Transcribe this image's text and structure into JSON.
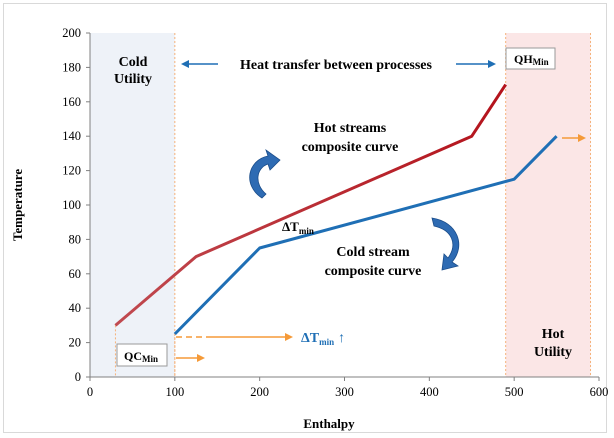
{
  "chart_data": {
    "type": "line",
    "xlabel": "Enthalpy",
    "ylabel": "Temperature",
    "xlim": [
      0,
      600
    ],
    "ylim": [
      0,
      200
    ],
    "xticks": [
      "0",
      "100",
      "200",
      "300",
      "400",
      "500",
      "600"
    ],
    "yticks": [
      "0",
      "20",
      "40",
      "60",
      "80",
      "100",
      "120",
      "140",
      "160",
      "180",
      "200"
    ],
    "grid": false,
    "series": [
      {
        "key": "hot",
        "color": "#b4121b",
        "x": [
          30,
          125,
          450,
          490
        ],
        "y": [
          30,
          70,
          140,
          170
        ]
      },
      {
        "key": "cold",
        "color": "#1f6fb5",
        "x": [
          100,
          200,
          500,
          550
        ],
        "y": [
          25,
          75,
          115,
          140
        ]
      }
    ],
    "regions": {
      "cold_utility": {
        "x": [
          0,
          100
        ],
        "color": "#eef2f8"
      },
      "hot_utility": {
        "x": [
          490,
          590
        ],
        "color": "#fbe6e6"
      }
    },
    "annotations": {
      "cold_utility_label": [
        "Cold",
        "Utility"
      ],
      "hot_utility_label": [
        "Hot",
        "Utility"
      ],
      "heat_transfer_label": "Heat transfer between processes",
      "hot_streams_label": [
        "Hot streams",
        "composite curve"
      ],
      "cold_stream_label": [
        "Cold stream",
        "composite curve"
      ],
      "delta_t_main": "T",
      "delta_t_sub": "min",
      "delta_t_blue_arrow": "↑",
      "qh_main": "QH",
      "qh_sub": "Min",
      "qc_main": "QC",
      "qc_sub": "Min",
      "delta_symbol": "Δ"
    },
    "colors": {
      "arrow_orange": "#f59a38",
      "arrow_blue": "#1f6fb5",
      "curved_arrow": "#2e6bb3"
    }
  }
}
